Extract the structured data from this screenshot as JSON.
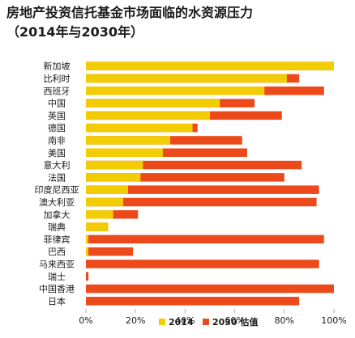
{
  "title_line1": "房地产投资信托基金市场面临的水资源压力",
  "title_line2": "（2014年与2030年）",
  "colors": {
    "y2014": "#f2cc05",
    "y2030": "#ec4a1a",
    "axis": "#b0b0b0"
  },
  "chart_data": {
    "type": "bar",
    "orientation": "horizontal",
    "categories": [
      "新加坡",
      "比利时",
      "西班牙",
      "中国",
      "英国",
      "德国",
      "南非",
      "美国",
      "意大利",
      "法国",
      "印度尼西亚",
      "澳大利亚",
      "加拿大",
      "瑞典",
      "菲律宾",
      "巴西",
      "马来西亚",
      "瑞士",
      "中国香港",
      "日本"
    ],
    "series": [
      {
        "name": "2014",
        "values": [
          100,
          81,
          72,
          54,
          50,
          43,
          34,
          31,
          23,
          22,
          17,
          15,
          11,
          9,
          1,
          1,
          0,
          0,
          0,
          0
        ]
      },
      {
        "name": "2030 估值",
        "values": [
          100,
          86,
          96,
          68,
          79,
          45,
          63,
          65,
          87,
          80,
          94,
          93,
          21,
          9,
          96,
          19,
          94,
          1,
          100,
          86
        ]
      }
    ],
    "xlim": [
      0,
      100
    ],
    "xticks": [
      "0%",
      "20%",
      "40%",
      "60%",
      "80%",
      "100%"
    ],
    "legend_position": "bottom",
    "grid": false
  }
}
